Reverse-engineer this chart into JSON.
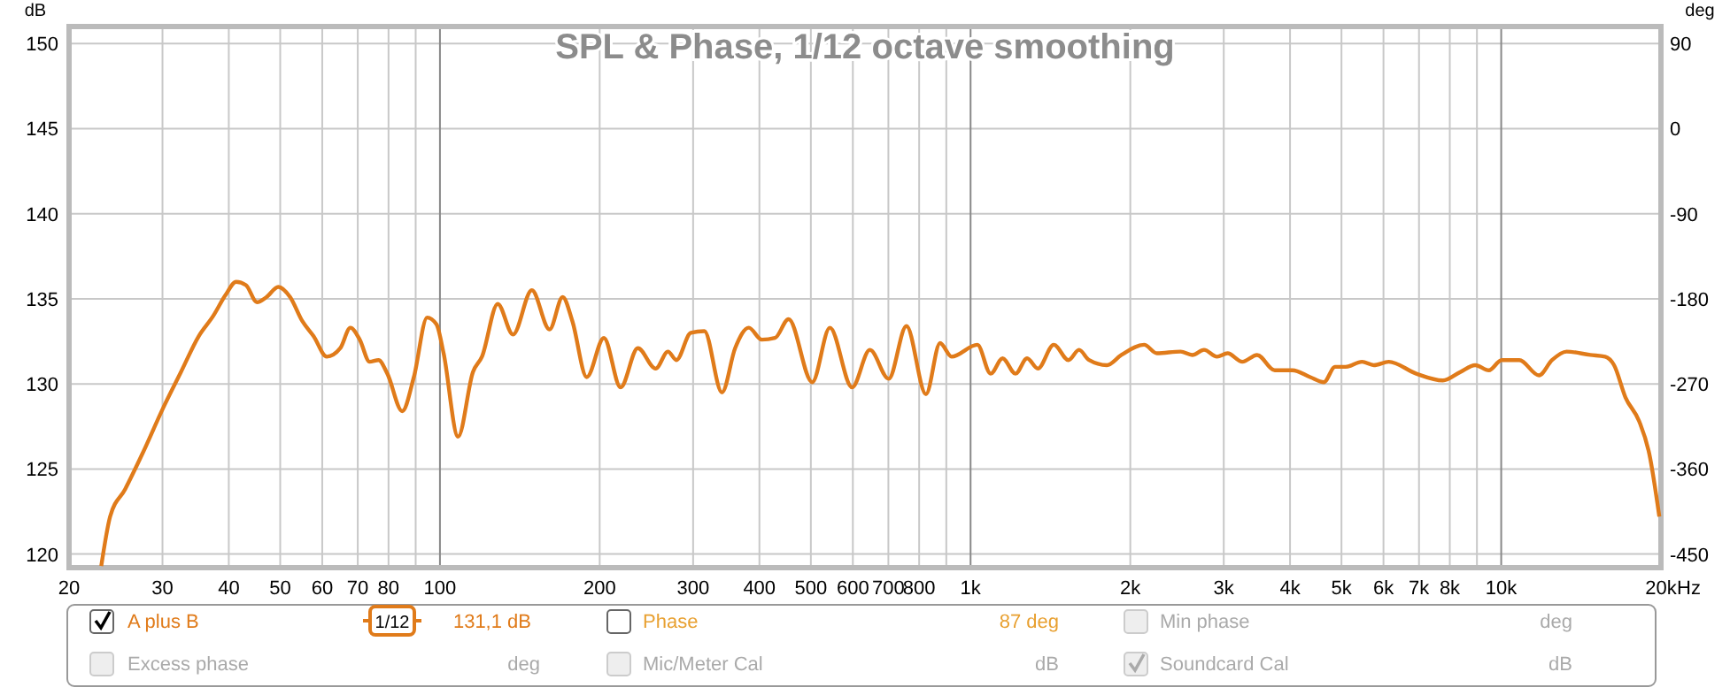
{
  "chart_data": {
    "type": "line",
    "title": "SPL & Phase, 1/12 octave smoothing",
    "ylabel": "dB",
    "y2label": "deg",
    "log": "x",
    "grid": true,
    "legend": "bottom",
    "line_style": "solid",
    "marker": "none",
    "xlim": [
      20,
      20000
    ],
    "xticks": [
      20,
      30,
      40,
      50,
      60,
      70,
      80,
      {
        "value": 90,
        "label": null
      },
      {
        "value": 100,
        "label": "100"
      },
      200,
      300,
      400,
      500,
      600,
      700,
      800,
      {
        "value": 900,
        "label": null
      },
      {
        "value": 1000,
        "label": "1k"
      },
      {
        "value": 2000,
        "label": "2k"
      },
      {
        "value": 3000,
        "label": "3k"
      },
      {
        "value": 4000,
        "label": "4k"
      },
      {
        "value": 5000,
        "label": "5k"
      },
      {
        "value": 6000,
        "label": "6k"
      },
      {
        "value": 7000,
        "label": "7k"
      },
      {
        "value": 8000,
        "label": "8k"
      },
      {
        "value": 9000,
        "label": null
      },
      {
        "value": 10000,
        "label": "10k"
      },
      {
        "value": 20000,
        "label": "20k"
      }
    ],
    "xlabel": "Hz",
    "ylim": [
      119.2,
      151
    ],
    "yticks": [
      120,
      125,
      130,
      135,
      140,
      145,
      150
    ],
    "y2lim": [
      -464.4,
      108
    ],
    "y2ticks": [
      90,
      0,
      -90,
      -180,
      -270,
      -360,
      -450
    ],
    "x": [
      23,
      23.9,
      25.5,
      27.5,
      30.1,
      32.5,
      35.1,
      37.4,
      39.4,
      41.3,
      43.1,
      45.2,
      47.1,
      49.6,
      52.2,
      55,
      57.8,
      61.2,
      64.9,
      67.8,
      70.6,
      73.7,
      76.6,
      79.6,
      84.9,
      89.3,
      94.6,
      98.5,
      101.6,
      108.2,
      115.4,
      120,
      128.5,
      137.3,
      149,
      160.9,
      170.3,
      177.6,
      189.1,
      203.7,
      219,
      236,
      255,
      269,
      279,
      297,
      315,
      340,
      360,
      382,
      404,
      428,
      454,
      503,
      543,
      598,
      646,
      701,
      757,
      824,
      876,
      921,
      1030,
      1091,
      1149,
      1215,
      1278,
      1339,
      1435,
      1529,
      1601,
      1672,
      1806,
      1924,
      2123,
      2245,
      2488,
      2617,
      2754,
      2913,
      3050,
      3252,
      3467,
      3743,
      4042,
      4365,
      4632,
      4863,
      5090,
      5467,
      5754,
      6138,
      6918,
      7762,
      8375,
      8933,
      9480,
      10020,
      10820,
      11780,
      12470,
      13280,
      14720,
      15700,
      16320,
      17150,
      18200,
      19010,
      19860
    ],
    "series": [
      {
        "name": "A plus B",
        "color": "#e07b1a",
        "values": [
          119.3,
          122.2,
          123.8,
          125.9,
          128.6,
          130.7,
          132.8,
          134,
          135.2,
          136,
          135.8,
          134.8,
          135.1,
          135.7,
          135.1,
          133.7,
          132.8,
          131.6,
          132.1,
          133.3,
          132.6,
          131.3,
          131.4,
          130.6,
          128.4,
          130.4,
          133.9,
          133.5,
          131.8,
          126.9,
          130.7,
          131.6,
          134.7,
          132.9,
          135.5,
          133.2,
          135.1,
          133.7,
          130.4,
          132.7,
          129.8,
          132.1,
          130.9,
          131.9,
          131.4,
          133,
          133.1,
          129.5,
          132.1,
          133.3,
          132.6,
          132.7,
          133.8,
          130.1,
          133.3,
          129.8,
          132,
          130.3,
          133.4,
          129.4,
          132.4,
          131.6,
          132.3,
          130.6,
          131.5,
          130.6,
          131.5,
          130.9,
          132.3,
          131.4,
          132,
          131.4,
          131.1,
          131.7,
          132.3,
          131.8,
          131.9,
          131.7,
          132,
          131.6,
          131.8,
          131.3,
          131.7,
          130.8,
          130.8,
          130.4,
          130.1,
          131,
          131,
          131.3,
          131.1,
          131.3,
          130.6,
          130.2,
          130.7,
          131.1,
          130.8,
          131.4,
          131.4,
          130.5,
          131.4,
          131.9,
          131.7,
          131.6,
          131.1,
          129.2,
          127.8,
          125.9,
          122.2
        ]
      }
    ],
    "annotations": [
      "1/12",
      "131,1 dB",
      "Phase",
      "87 deg",
      "Min phase",
      "deg",
      "Excess phase",
      "deg",
      "Mic/Meter Cal",
      "dB",
      "Soundcard Cal",
      "dB"
    ]
  }
}
